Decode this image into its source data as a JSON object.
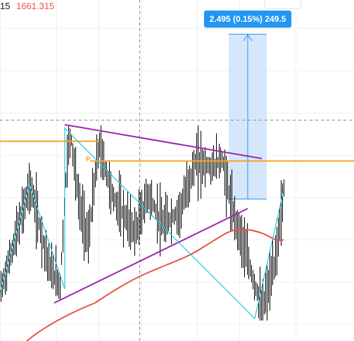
{
  "header": {
    "interval": "15",
    "price": "1661.315"
  },
  "measure_tool": {
    "label": "2.495 (0.15%) 249.5"
  },
  "pivot_marker": {
    "label": "P"
  },
  "colors": {
    "background": "#ffffff",
    "grid": "#eef0f3",
    "candle": "#000000",
    "price_down": "#ef5350",
    "level_line": "#f5a623",
    "moving_average": "#e5544a",
    "triangle": "#9c27b0",
    "zigzag": "#26c6da",
    "measure_fill": "#cfe3fb",
    "measure_border": "#2196f3",
    "crosshair": "#888888"
  },
  "icons": [
    "price-measure-arrow-icon"
  ]
}
